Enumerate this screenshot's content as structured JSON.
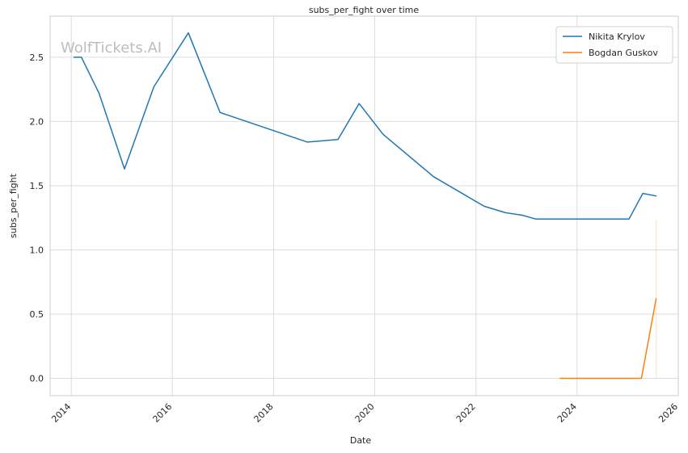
{
  "chart_data": {
    "type": "line",
    "title": "subs_per_fight over time",
    "xlabel": "Date",
    "ylabel": "subs_per_fight",
    "watermark": "WolfTickets.AI",
    "xlim": [
      "2013-08-01",
      "2026-01-01"
    ],
    "ylim": [
      -0.135,
      2.82
    ],
    "x_ticks": [
      "2014",
      "2016",
      "2018",
      "2020",
      "2022",
      "2024",
      "2026"
    ],
    "y_ticks": [
      0.0,
      0.5,
      1.0,
      1.5,
      2.0,
      2.5
    ],
    "y_tick_labels": [
      "0.0",
      "0.5",
      "1.0",
      "1.5",
      "2.0",
      "2.5"
    ],
    "grid": true,
    "legend_position": "top-right",
    "series": [
      {
        "name": "Nikita Krylov",
        "color": "#1f77b4",
        "points": [
          [
            "2014-01-20",
            2.5
          ],
          [
            "2014-03-15",
            2.5
          ],
          [
            "2014-07-20",
            2.22
          ],
          [
            "2015-01-20",
            1.63
          ],
          [
            "2015-08-20",
            2.27
          ],
          [
            "2016-04-25",
            2.69
          ],
          [
            "2016-12-10",
            2.07
          ],
          [
            "2018-09-01",
            1.84
          ],
          [
            "2019-04-10",
            1.86
          ],
          [
            "2019-09-10",
            2.14
          ],
          [
            "2020-03-01",
            1.9
          ],
          [
            "2021-03-01",
            1.57
          ],
          [
            "2022-03-01",
            1.34
          ],
          [
            "2022-08-01",
            1.29
          ],
          [
            "2022-12-01",
            1.27
          ],
          [
            "2023-03-10",
            1.24
          ],
          [
            "2025-01-10",
            1.24
          ],
          [
            "2025-04-20",
            1.44
          ],
          [
            "2025-07-25",
            1.42
          ]
        ]
      },
      {
        "name": "Bogdan Guskov",
        "color": "#ff7f0e",
        "points": [
          [
            "2023-09-01",
            0.0
          ],
          [
            "2025-04-10",
            0.0
          ],
          [
            "2025-07-25",
            0.62
          ]
        ],
        "band": {
          "x": "2025-07-25",
          "low": 0.0,
          "high": 1.24
        }
      }
    ]
  }
}
